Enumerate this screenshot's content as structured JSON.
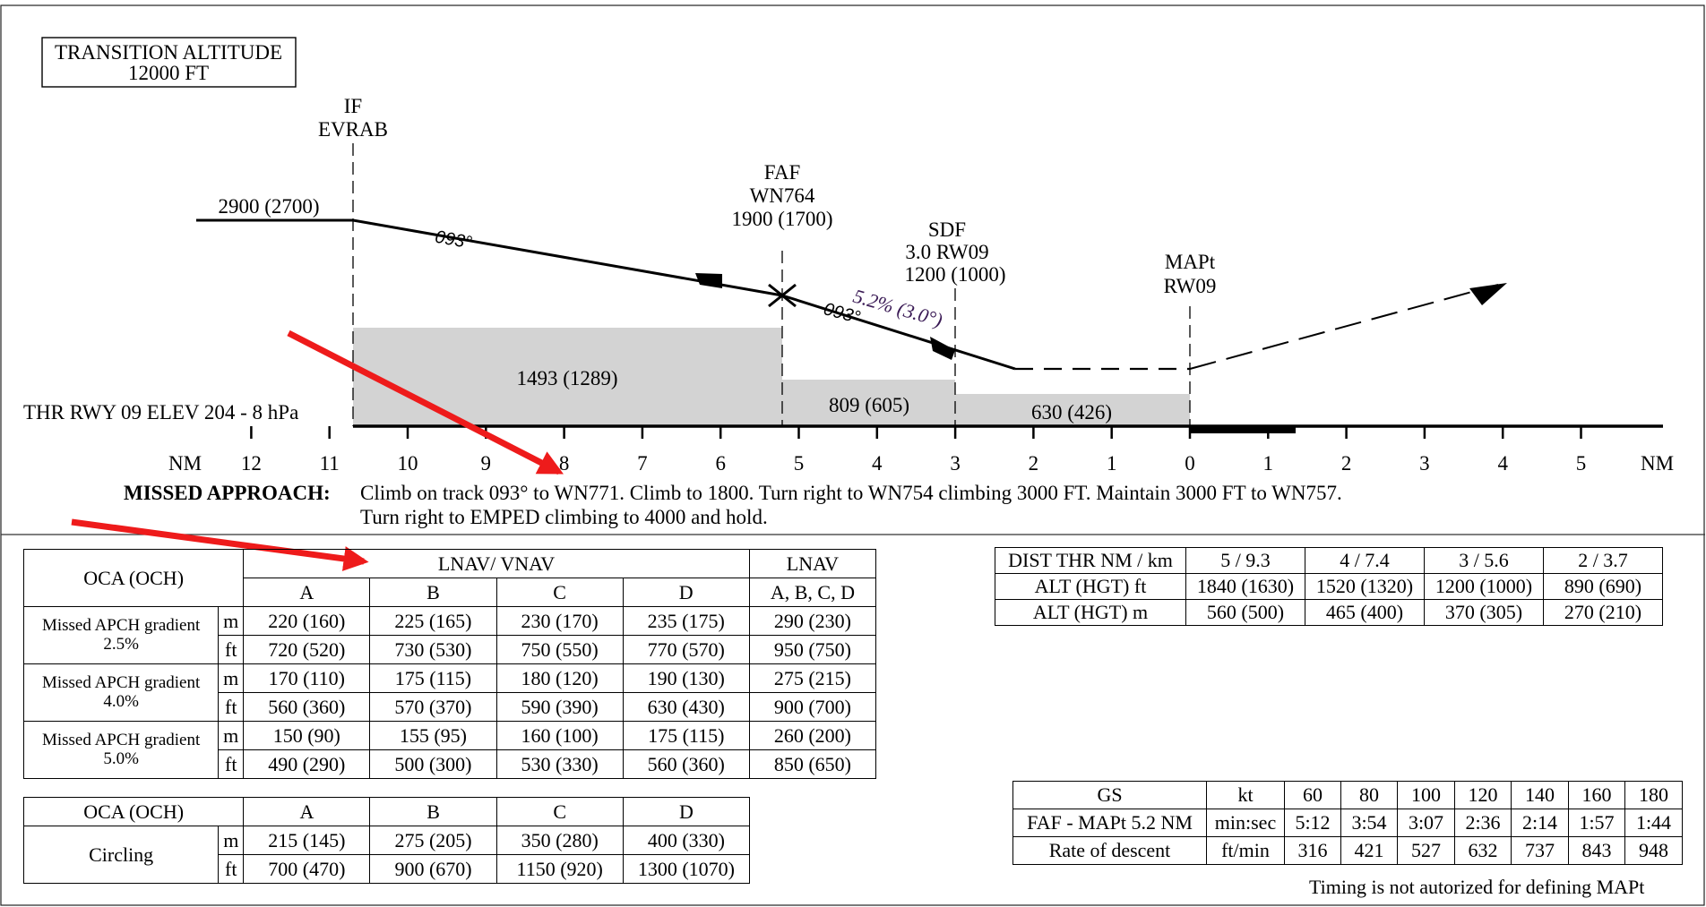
{
  "profile": {
    "transition_altitude": [
      "TRANSITION ALTITUDE",
      "12000 FT"
    ],
    "if_fix": [
      "IF",
      "EVRAB"
    ],
    "faf_fix": [
      "FAF",
      "WN764",
      "1900 (1700)"
    ],
    "sdf_fix": [
      "SDF",
      "3.0 RW09",
      "1200 (1000)"
    ],
    "mapt_fix": [
      "MAPt",
      "RW09"
    ],
    "initial_alt": "2900 (2700)",
    "track_1": "093°",
    "track_2": "093°",
    "gradient": "5.2% (3.0°)",
    "moc_1": "1493 (1289)",
    "moc_2": "809 (605)",
    "moc_3": "630 (426)",
    "threshold": "THR RWY 09 ELEV 204 - 8 hPa",
    "nm_unit": "NM",
    "scale_before": [
      "12",
      "11",
      "10",
      "9",
      "8",
      "7",
      "6",
      "5",
      "4",
      "3",
      "2",
      "1",
      "0"
    ],
    "scale_after": [
      "1",
      "2",
      "3",
      "4",
      "5"
    ]
  },
  "missed_approach": {
    "label": "MISSED APPROACH:",
    "line1": "Climb on track 093° to WN771. Climb to 1800. Turn right to WN754 climbing 3000 FT. Maintain 3000 FT to WN757.",
    "line2": "Turn right to EMPED climbing to 4000 and hold."
  },
  "minima": {
    "header_oca": "OCA (OCH)",
    "header_lnav_vnav": "LNAV/ VNAV",
    "header_lnav": "LNAV",
    "cols": [
      "A",
      "B",
      "C",
      "D"
    ],
    "lnav_cols": "A, B, C, D",
    "rows": [
      {
        "label": "Missed APCH gradient 2.5%",
        "m": [
          "220 (160)",
          "225 (165)",
          "230 (170)",
          "235 (175)",
          "290 (230)"
        ],
        "ft": [
          "720 (520)",
          "730 (530)",
          "750 (550)",
          "770 (570)",
          "950 (750)"
        ]
      },
      {
        "label": "Missed APCH gradient 4.0%",
        "m": [
          "170 (110)",
          "175 (115)",
          "180 (120)",
          "190 (130)",
          "275 (215)"
        ],
        "ft": [
          "560 (360)",
          "570 (370)",
          "590 (390)",
          "630 (430)",
          "900 (700)"
        ]
      },
      {
        "label": "Missed APCH gradient 5.0%",
        "m": [
          "150 (90)",
          "155 (95)",
          "160 (100)",
          "175 (115)",
          "260 (200)"
        ],
        "ft": [
          "490 (290)",
          "500 (300)",
          "530 (330)",
          "560 (360)",
          "850 (650)"
        ]
      }
    ],
    "unit_m": "m",
    "unit_ft": "ft"
  },
  "circling": {
    "header_oca": "OCA (OCH)",
    "cols": [
      "A",
      "B",
      "C",
      "D"
    ],
    "label": "Circling",
    "unit_m": "m",
    "unit_ft": "ft",
    "m": [
      "215 (145)",
      "275 (205)",
      "350 (280)",
      "400 (330)"
    ],
    "ft": [
      "700 (470)",
      "900 (670)",
      "1150 (920)",
      "1300 (1070)"
    ]
  },
  "distance_table": {
    "header": [
      "DIST THR NM / km",
      "5 / 9.3",
      "4 / 7.4",
      "3 / 5.6",
      "2 / 3.7"
    ],
    "row_ft": [
      "ALT (HGT) ft",
      "1840 (1630)",
      "1520 (1320)",
      "1200 (1000)",
      "890 (690)"
    ],
    "row_m": [
      "ALT (HGT) m",
      "560 (500)",
      "465 (400)",
      "370 (305)",
      "270 (210)"
    ]
  },
  "timing_table": {
    "header": [
      "GS",
      "kt",
      "60",
      "80",
      "100",
      "120",
      "140",
      "160",
      "180"
    ],
    "row_time": [
      "FAF - MAPt 5.2 NM",
      "min:sec",
      "5:12",
      "3:54",
      "3:07",
      "2:36",
      "2:14",
      "1:57",
      "1:44"
    ],
    "row_rate": [
      "Rate of descent",
      "ft/min",
      "316",
      "421",
      "527",
      "632",
      "737",
      "843",
      "948"
    ]
  },
  "timing_note": "Timing is not autorized for defining MAPt",
  "colors": {
    "moc_fill": "#d3d3d3",
    "arrow": "#ee1b1b",
    "line": "#000000"
  }
}
